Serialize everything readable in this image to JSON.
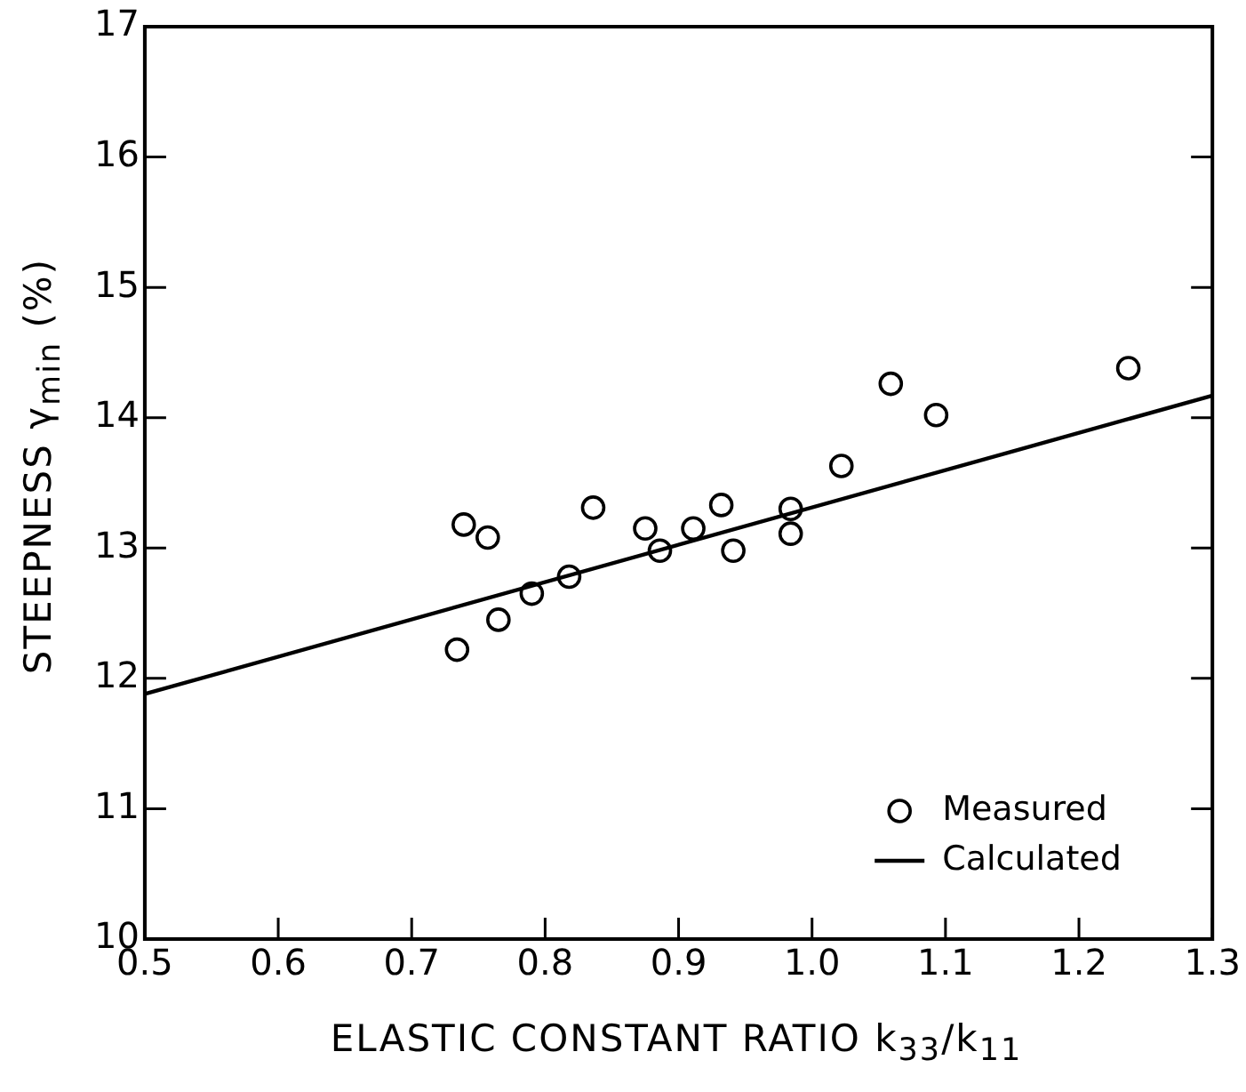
{
  "chart_data": {
    "type": "scatter",
    "xlabel": "ELASTIC CONSTANT RATIO k$_{33}$/k$_{11}$",
    "ylabel": "STEEPNESS γ$_{min}$ (%)",
    "xlim": [
      0.5,
      1.3
    ],
    "xticks": [
      0.5,
      0.6,
      0.7,
      0.8,
      0.9,
      {
        "value": 1.0,
        "label": "1.0"
      },
      1.1,
      1.2,
      1.3
    ],
    "ylim": [
      10,
      17
    ],
    "yticks": [
      10,
      11,
      12,
      13,
      14,
      15,
      16,
      17
    ],
    "grid": false,
    "legend": "bottom right",
    "series": [
      {
        "name": "Measured",
        "marker": "circle",
        "color": "#000000",
        "x": [
          0.734,
          0.739,
          0.757,
          0.765,
          0.79,
          0.818,
          0.836,
          0.875,
          0.886,
          0.911,
          0.932,
          0.941,
          0.984,
          0.984,
          1.022,
          1.059,
          1.093,
          1.237
        ],
        "values": [
          12.22,
          13.18,
          13.08,
          12.45,
          12.65,
          12.78,
          13.31,
          13.15,
          12.98,
          13.15,
          13.33,
          12.98,
          13.3,
          13.11,
          13.63,
          14.26,
          14.02,
          14.38
        ]
      },
      {
        "name": "Calculated",
        "type": "line",
        "marker": "none",
        "line_style": "solid",
        "color": "#000000",
        "x": [
          0.5,
          1.3
        ],
        "values": [
          11.88,
          14.17
        ]
      }
    ]
  }
}
